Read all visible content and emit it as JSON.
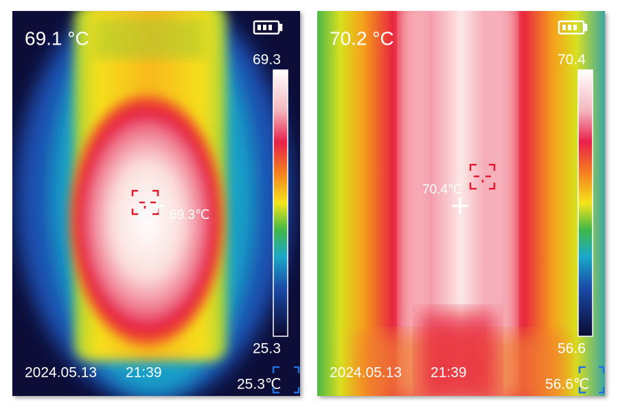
{
  "panels": [
    {
      "center_temp": "69.1 °C",
      "scale_max": "69.3",
      "scale_min": "25.3",
      "spot_temp": "69.3℃",
      "date": "2024.05.13",
      "time": "21:39",
      "min_temp": "25.3℃"
    },
    {
      "center_temp": "70.2 °C",
      "scale_max": "70.4",
      "scale_min": "56.6",
      "spot_temp": "70.4℃",
      "date": "2024.05.13",
      "time": "21:39",
      "min_temp": "56.6℃"
    }
  ]
}
